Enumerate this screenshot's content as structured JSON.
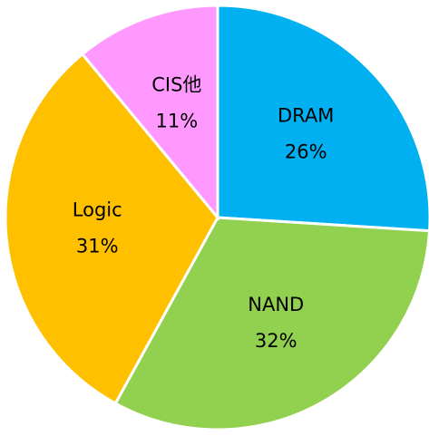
{
  "chart_data": {
    "type": "pie",
    "categories": [
      "DRAM",
      "NAND",
      "Logic",
      "CIS他"
    ],
    "values": [
      26,
      32,
      31,
      11
    ],
    "value_labels": [
      "26%",
      "32%",
      "31%",
      "11%"
    ],
    "colors": [
      "#00b0f0",
      "#92d050",
      "#ffc000",
      "#ff99ff"
    ]
  }
}
